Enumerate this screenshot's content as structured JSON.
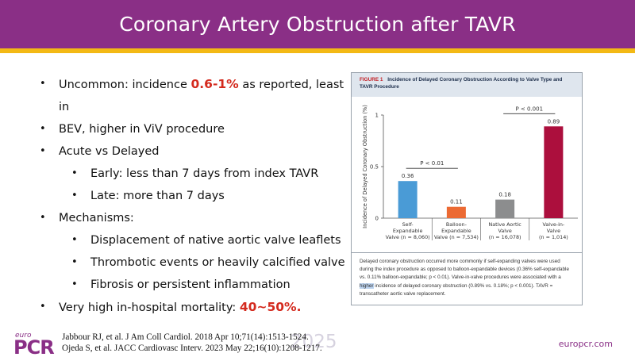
{
  "title": "Coronary Artery Obstruction after TAVR",
  "bullets": {
    "b1_pre": "Uncommon: incidence",
    "b1_hl": "0.6-1%",
    "b1_post": "as reported,  least in",
    "b1_cont": "BEV, higher  in  ViV  procedure",
    "b2": "Acute vs Delayed",
    "b2_1": "Early: less than 7 days from index TAVR",
    "b2_2": "Late: more than 7 days",
    "b3": "Mechanisms:",
    "b3_1": "Displacement of native aortic valve leaflets",
    "b3_2": "Thrombotic events or heavily calcified valve",
    "b3_3": "Fibrosis or persistent inflammation",
    "b4_pre": "Very high in-hospital mortality:",
    "b4_hl": "40~50%",
    "b4_post": "."
  },
  "figure": {
    "label": "FIGURE 1",
    "title": "Incidence of Delayed Coronary Obstruction According to Valve Type and TAVR Procedure",
    "caption_pre": "Delayed coronary obstruction occurred more commonly if self-expanding valves were used during the index procedure as opposed to balloon-expandable devices (0.36% self-expandable vs. 0.11% balloon-expandable; p < 0.01). Valve-in-valve procedures were associated with a ",
    "caption_mark": "higher",
    "caption_post": " incidence of delayed coronary obstruction (0.89% vs. 0.18%; p < 0.001). TAVR = transcatheter aortic valve replacement."
  },
  "chart_data": {
    "type": "bar",
    "ylabel": "Incidence of Delayed Coronary Obstruction (%)",
    "ylim": [
      0,
      1
    ],
    "yticks": [
      "0",
      "0.5",
      "1"
    ],
    "categories": [
      {
        "line1": "Self-",
        "line2": "Expandable",
        "line3": "Valve (n = 8,060)"
      },
      {
        "line1": "Balloon-",
        "line2": "Expandable",
        "line3": "Valve (n = 7,534)"
      },
      {
        "line1": "Native Aortic",
        "line2": "Valve",
        "line3": "(n = 16,078)"
      },
      {
        "line1": "Valve-in-",
        "line2": "Valve",
        "line3": "(n = 1,014)"
      }
    ],
    "values": [
      0.36,
      0.11,
      0.18,
      0.89
    ],
    "value_labels": [
      "0.36",
      "0.11",
      "0.18",
      "0.89"
    ],
    "colors": [
      "#4a9bd6",
      "#ec6a33",
      "#8c8d8e",
      "#ac0f3d"
    ],
    "annotations": [
      {
        "label": "P < 0.01",
        "from": 0,
        "to": 1
      },
      {
        "label": "P < 0.001",
        "from": 2,
        "to": 3
      }
    ],
    "grid": false
  },
  "footer": {
    "logo_small": "euro",
    "logo_big": "PCR",
    "year": "2025",
    "ref1": "Jabbour RJ, et al. J Am Coll Cardiol. 2018 Apr 10;71(14):1513-1524.",
    "ref2": "Ojeda S, et al. JACC Cardiovasc Interv. 2023 May 22;16(10):1208-1217.",
    "site": "europcr.com"
  }
}
